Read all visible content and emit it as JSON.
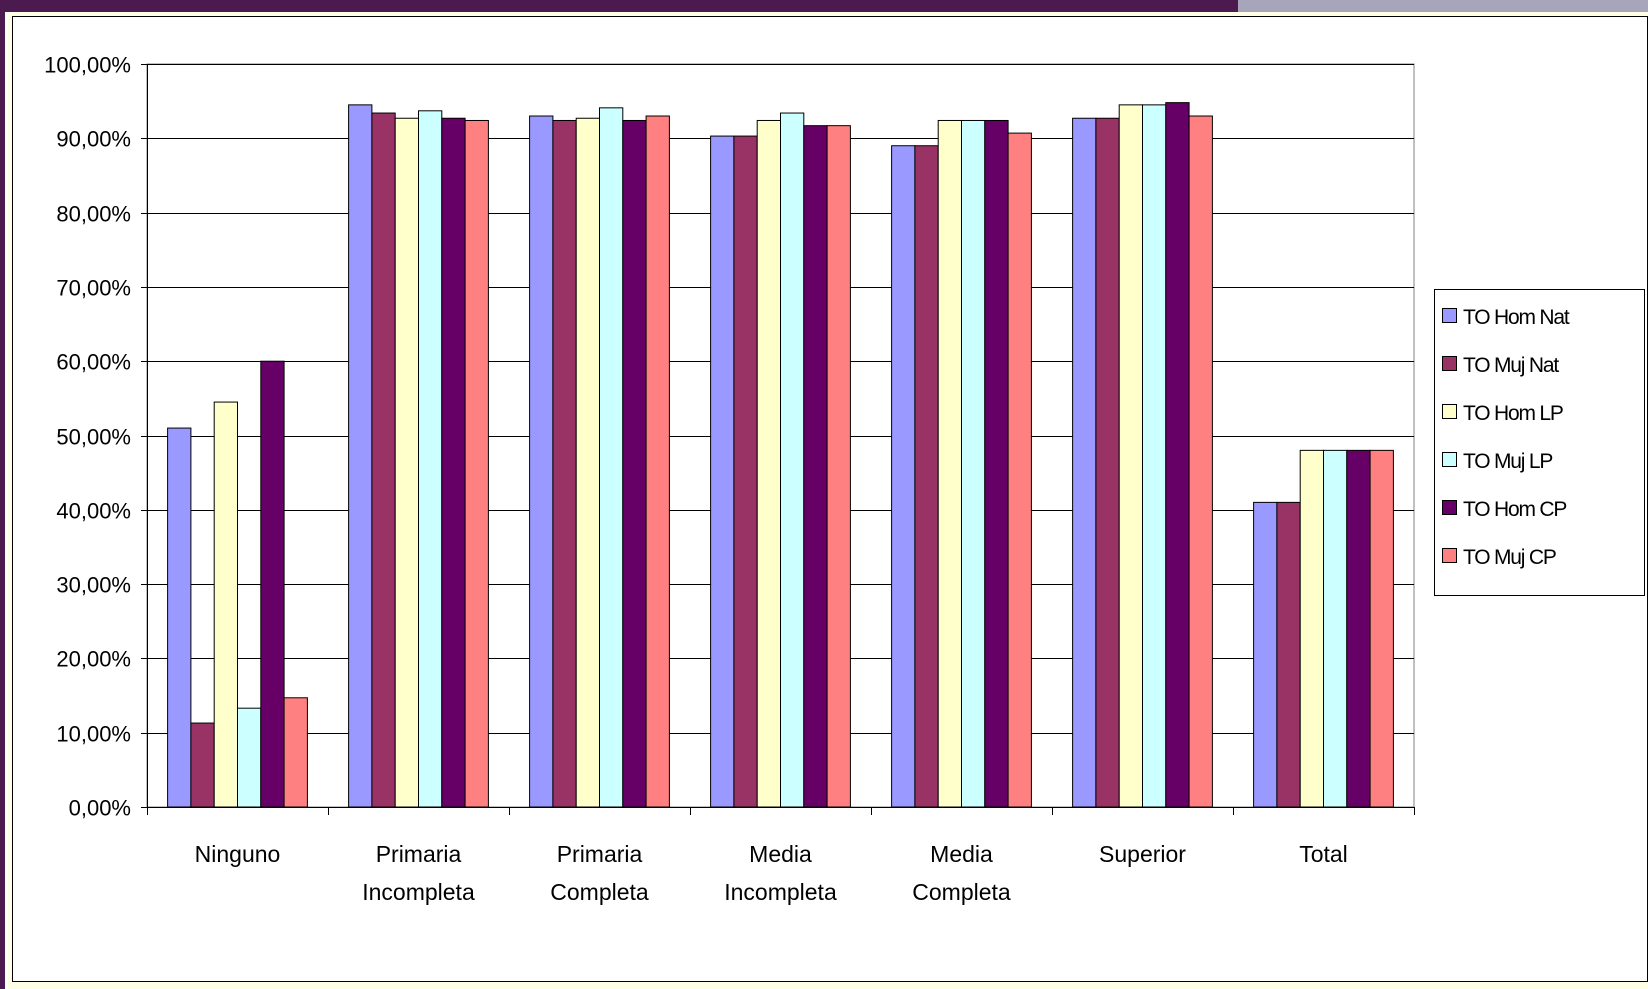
{
  "chart_data": {
    "type": "bar",
    "categories": [
      [
        "Ninguno"
      ],
      [
        "Primaria",
        "Incompleta"
      ],
      [
        "Primaria",
        "Completa"
      ],
      [
        "Media",
        "Incompleta"
      ],
      [
        "Media",
        "Completa"
      ],
      [
        "Superior"
      ],
      [
        "Total"
      ]
    ],
    "series": [
      {
        "name": "TO Hom Nat",
        "color": "#9999ff",
        "values": [
          51.0,
          94.5,
          93.0,
          90.3,
          89.0,
          92.7,
          41.0
        ]
      },
      {
        "name": "TO Muj Nat",
        "color": "#993366",
        "values": [
          11.3,
          93.4,
          92.4,
          90.3,
          89.0,
          92.7,
          41.0
        ]
      },
      {
        "name": "TO Hom LP",
        "color": "#ffffcc",
        "values": [
          54.5,
          92.7,
          92.7,
          92.4,
          92.4,
          94.5,
          48.0
        ]
      },
      {
        "name": "TO Muj LP",
        "color": "#ccffff",
        "values": [
          13.3,
          93.7,
          94.1,
          93.4,
          92.4,
          94.5,
          48.0
        ]
      },
      {
        "name": "TO Hom CP",
        "color": "#660066",
        "values": [
          60.0,
          92.7,
          92.4,
          91.7,
          92.4,
          94.8,
          48.0
        ]
      },
      {
        "name": "TO Muj CP",
        "color": "#ff8080",
        "values": [
          14.7,
          92.4,
          93.0,
          91.7,
          90.7,
          93.0,
          48.0
        ]
      }
    ],
    "yticks": [
      "0,00%",
      "10,00%",
      "20,00%",
      "30,00%",
      "40,00%",
      "50,00%",
      "60,00%",
      "70,00%",
      "80,00%",
      "90,00%",
      "100,00%"
    ],
    "ylim": [
      0,
      100
    ],
    "grid": true,
    "legend": "right",
    "title": "",
    "xlabel": "",
    "ylabel": ""
  }
}
